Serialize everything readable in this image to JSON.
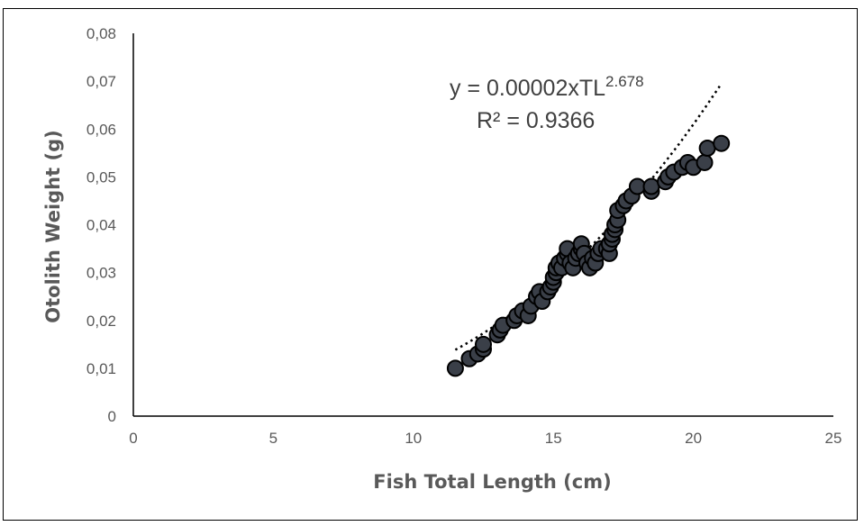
{
  "chart_data": {
    "type": "scatter",
    "xlabel": "Fish Total Length (cm)",
    "ylabel": "Otolith Weight (g)",
    "xlim": [
      0,
      25
    ],
    "ylim": [
      0,
      0.08
    ],
    "x_ticks": [
      "0",
      "5",
      "10",
      "15",
      "20",
      "25"
    ],
    "y_ticks": [
      "0",
      "0,01",
      "0,02",
      "0,03",
      "0,04",
      "0,05",
      "0,06",
      "0,07",
      "0,08"
    ],
    "grid": false,
    "legend": "none",
    "marker_color": "#3a3f48",
    "equation": {
      "prefix": "y = 0.00002xTL",
      "exponent": "2.678",
      "r2": "R² = 0.9366"
    },
    "trendline": {
      "type": "power",
      "a": 2e-05,
      "b": 2.678,
      "x_range": [
        11.5,
        21
      ]
    },
    "points": [
      [
        11.5,
        0.01
      ],
      [
        12.0,
        0.012
      ],
      [
        12.3,
        0.013
      ],
      [
        12.5,
        0.014
      ],
      [
        12.5,
        0.015
      ],
      [
        13.0,
        0.017
      ],
      [
        13.1,
        0.018
      ],
      [
        13.2,
        0.019
      ],
      [
        13.6,
        0.02
      ],
      [
        13.7,
        0.021
      ],
      [
        13.9,
        0.022
      ],
      [
        14.1,
        0.021
      ],
      [
        14.2,
        0.023
      ],
      [
        14.4,
        0.025
      ],
      [
        14.5,
        0.026
      ],
      [
        14.6,
        0.024
      ],
      [
        14.8,
        0.026
      ],
      [
        14.9,
        0.027
      ],
      [
        15.0,
        0.028
      ],
      [
        15.0,
        0.029
      ],
      [
        15.1,
        0.03
      ],
      [
        15.1,
        0.031
      ],
      [
        15.2,
        0.032
      ],
      [
        15.3,
        0.031
      ],
      [
        15.4,
        0.033
      ],
      [
        15.5,
        0.034
      ],
      [
        15.5,
        0.035
      ],
      [
        15.6,
        0.032
      ],
      [
        15.7,
        0.031
      ],
      [
        15.8,
        0.033
      ],
      [
        15.9,
        0.034
      ],
      [
        16.0,
        0.035
      ],
      [
        16.0,
        0.036
      ],
      [
        16.1,
        0.034
      ],
      [
        16.2,
        0.032
      ],
      [
        16.3,
        0.031
      ],
      [
        16.4,
        0.033
      ],
      [
        16.5,
        0.032
      ],
      [
        16.6,
        0.034
      ],
      [
        16.7,
        0.035
      ],
      [
        16.9,
        0.035
      ],
      [
        17.0,
        0.034
      ],
      [
        17.0,
        0.036
      ],
      [
        17.1,
        0.037
      ],
      [
        17.1,
        0.038
      ],
      [
        17.2,
        0.039
      ],
      [
        17.2,
        0.04
      ],
      [
        17.3,
        0.041
      ],
      [
        17.3,
        0.043
      ],
      [
        17.5,
        0.044
      ],
      [
        17.6,
        0.045
      ],
      [
        17.8,
        0.046
      ],
      [
        18.0,
        0.048
      ],
      [
        18.5,
        0.047
      ],
      [
        18.5,
        0.048
      ],
      [
        19.0,
        0.049
      ],
      [
        19.1,
        0.05
      ],
      [
        19.3,
        0.051
      ],
      [
        19.6,
        0.052
      ],
      [
        19.8,
        0.053
      ],
      [
        20.0,
        0.052
      ],
      [
        20.4,
        0.053
      ],
      [
        20.5,
        0.056
      ],
      [
        21.0,
        0.057
      ]
    ]
  }
}
